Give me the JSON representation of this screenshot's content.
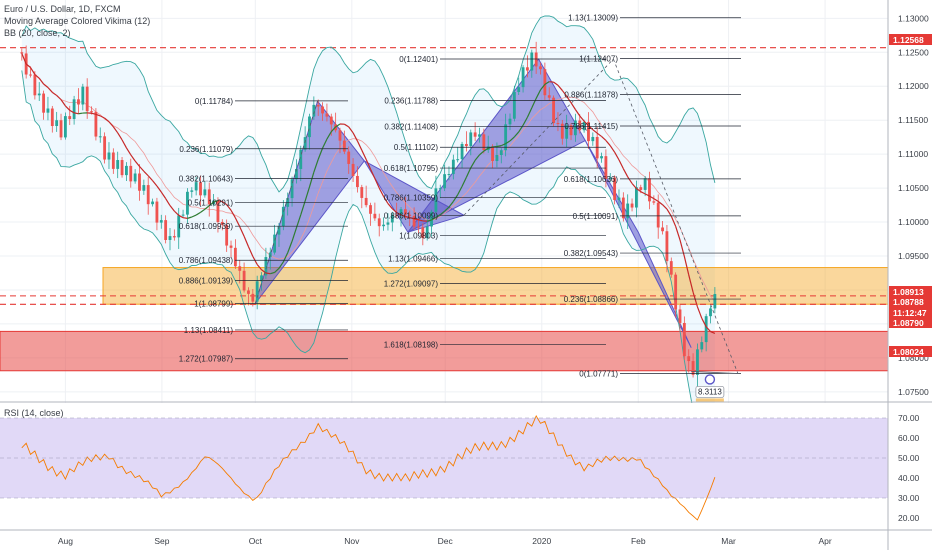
{
  "header": {
    "symbol": "Euro / U.S. Dollar, 1D, FXCM",
    "indicator_1": "Moving Average Colored Vikima (12)",
    "indicator_2": "BB (20, close, 2)"
  },
  "rsi_label": "RSI (14, close)",
  "colors": {
    "up": "#26a69a",
    "down": "#ef5350",
    "rsi_line": "#f57c00",
    "rsi_band": "#c9b9f0",
    "pattern": "#5b55c8",
    "support_zone": "#f5a623",
    "demand_zone": "#e53935"
  },
  "price_tags": [
    {
      "value": "1.12568",
      "color": "#e53935"
    },
    {
      "value": "1.08913",
      "color": "#e53935"
    },
    {
      "value": "1.08788",
      "color": "#e53935"
    },
    {
      "value": "11:12:47",
      "color": "#e53935"
    },
    {
      "value": "1.08790",
      "color": "#e53935"
    },
    {
      "value": "1.08024",
      "color": "#e53935"
    }
  ],
  "annotation_value": "8.3113",
  "fib_levels": [
    {
      "text": "0(1.11784)",
      "price": 1.11784
    },
    {
      "text": "0.236(1.11079)",
      "price": 1.11079
    },
    {
      "text": "0.382(1.10643)",
      "price": 1.10643
    },
    {
      "text": "0.5(1.10291)",
      "price": 1.10291
    },
    {
      "text": "0.618(1.09939)",
      "price": 1.09939
    },
    {
      "text": "0.786(1.09438)",
      "price": 1.09438
    },
    {
      "text": "0.886(1.09139)",
      "price": 1.09139
    },
    {
      "text": "1(1.08799)",
      "price": 1.08799
    },
    {
      "text": "1.13(1.08411)",
      "price": 1.08411
    },
    {
      "text": "1.272(1.07987)",
      "price": 1.07987
    },
    {
      "text": "0(1.12401)",
      "price": 1.12401
    },
    {
      "text": "0.236(1.11788)",
      "price": 1.11788
    },
    {
      "text": "0.382(1.11408)",
      "price": 1.11408
    },
    {
      "text": "0.5(1.11102)",
      "price": 1.11102
    },
    {
      "text": "0.618(1.10795)",
      "price": 1.10795
    },
    {
      "text": "0.786(1.10359)",
      "price": 1.10359
    },
    {
      "text": "0.886(1.10099)",
      "price": 1.10099
    },
    {
      "text": "1(1.09803)",
      "price": 1.09803
    },
    {
      "text": "1.13(1.09466)",
      "price": 1.09466
    },
    {
      "text": "1.272(1.09097)",
      "price": 1.09097
    },
    {
      "text": "1.618(1.08198)",
      "price": 1.08198
    },
    {
      "text": "1.13(1.13009)",
      "price": 1.13009
    },
    {
      "text": "1(1.12407)",
      "price": 1.12407
    },
    {
      "text": "0.886(1.11878)",
      "price": 1.11878
    },
    {
      "text": "0.786(1.11415)",
      "price": 1.11415
    },
    {
      "text": "0.618(1.10636)",
      "price": 1.10636
    },
    {
      "text": "0.5(1.10091)",
      "price": 1.10091
    },
    {
      "text": "0.382(1.09543)",
      "price": 1.09543
    },
    {
      "text": "0.236(1.08866)",
      "price": 1.08866
    },
    {
      "text": "0(1.07771)",
      "price": 1.07771
    }
  ],
  "chart_data": {
    "type": "line",
    "title": "Euro / U.S. Dollar, 1D, FXCM",
    "x_tick_labels": [
      "Aug",
      "Sep",
      "Oct",
      "Nov",
      "Dec",
      "2020",
      "Feb",
      "Mar",
      "Apr"
    ],
    "y_tick_labels": [
      "1.13000",
      "1.12500",
      "1.12000",
      "1.11500",
      "1.11000",
      "1.10500",
      "1.10000",
      "1.09500",
      "1.09000",
      "1.08500",
      "1.08000",
      "1.07500"
    ],
    "ylim": [
      1.0735,
      1.1327
    ],
    "grid": true,
    "series": [
      {
        "name": "Euro / U.S. Dollar",
        "x": [
          "2019-07-18",
          "2019-07-25",
          "2019-08-01",
          "2019-08-08",
          "2019-08-15",
          "2019-08-22",
          "2019-08-29",
          "2019-09-05",
          "2019-09-12",
          "2019-09-19",
          "2019-09-26",
          "2019-10-01",
          "2019-10-08",
          "2019-10-15",
          "2019-10-21",
          "2019-10-29",
          "2019-11-05",
          "2019-11-12",
          "2019-11-19",
          "2019-11-26",
          "2019-11-29",
          "2019-12-05",
          "2019-12-12",
          "2019-12-19",
          "2019-12-26",
          "2019-12-31",
          "2020-01-08",
          "2020-01-15",
          "2020-01-22",
          "2020-01-29",
          "2020-02-04",
          "2020-02-11",
          "2020-02-18",
          "2020-02-20",
          "2020-02-24",
          "2020-02-26"
        ],
        "values": [
          1.125,
          1.119,
          1.113,
          1.1185,
          1.111,
          1.107,
          1.103,
          1.098,
          1.105,
          1.102,
          1.095,
          1.088,
          1.096,
          1.108,
          1.1178,
          1.112,
          1.105,
          1.099,
          1.101,
          1.0985,
          1.105,
          1.108,
          1.113,
          1.11,
          1.12,
          1.124,
          1.114,
          1.114,
          1.108,
          1.102,
          1.106,
          1.096,
          1.08,
          1.079,
          1.085,
          1.088
        ]
      },
      {
        "name": "RSI (14, close)",
        "x": [
          "2019-07-18",
          "2019-08-01",
          "2019-08-15",
          "2019-09-01",
          "2019-09-15",
          "2019-10-01",
          "2019-10-21",
          "2019-11-05",
          "2019-11-19",
          "2019-12-05",
          "2019-12-19",
          "2019-12-31",
          "2020-01-15",
          "2020-02-01",
          "2020-02-11",
          "2020-02-20",
          "2020-02-26"
        ],
        "values": [
          55,
          42,
          52,
          30,
          50,
          30,
          68,
          45,
          38,
          50,
          58,
          68,
          45,
          52,
          30,
          21,
          42
        ],
        "ylim": [
          15,
          75
        ],
        "band": [
          30,
          70
        ],
        "y_tick_labels": [
          "70.00",
          "60.00",
          "50.00",
          "40.00",
          "30.00",
          "20.00"
        ]
      }
    ],
    "zones": [
      {
        "from": 1.0879,
        "to": 1.0933
      },
      {
        "from": 1.0781,
        "to": 1.0839
      }
    ],
    "horizontal_lines": [
      1.12568,
      1.08913,
      1.08788
    ]
  }
}
